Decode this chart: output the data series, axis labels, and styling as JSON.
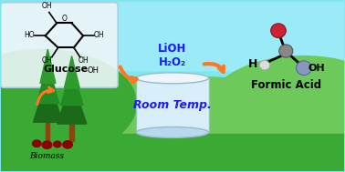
{
  "bg_sky_color": "#7DE8F0",
  "sky_top_color": "#9AEAF8",
  "hill_green_dark": "#2A9A25",
  "hill_green_mid": "#3AAA35",
  "hill_green_light": "#6DC95A",
  "ground_color": "#3AAA35",
  "glucose_box_color": "#EEF6FA",
  "glucose_box_edge": "#AACCDD",
  "glucose_label": "Glucose",
  "glucose_label_color": "#000000",
  "lioh_label": "LiOH",
  "h2o2_label": "H₂O₂",
  "reagent_color": "#1A1AFF",
  "room_temp_label": "Room Temp.",
  "room_temp_color": "#1A1AFF",
  "formic_acid_label": "Formic Acid",
  "formic_acid_color": "#000000",
  "biomass_label": "Biomass",
  "biomass_color": "#000000",
  "arrow_color": "#FF7722",
  "cylinder_face_color": "#D8EEF8",
  "cylinder_edge_color": "#99BBCC",
  "tree_dark": "#1A6A1A",
  "tree_mid": "#228B22",
  "tree_light": "#2E9B2E",
  "trunk_color": "#8B4513",
  "berry_color": "#8B0000"
}
